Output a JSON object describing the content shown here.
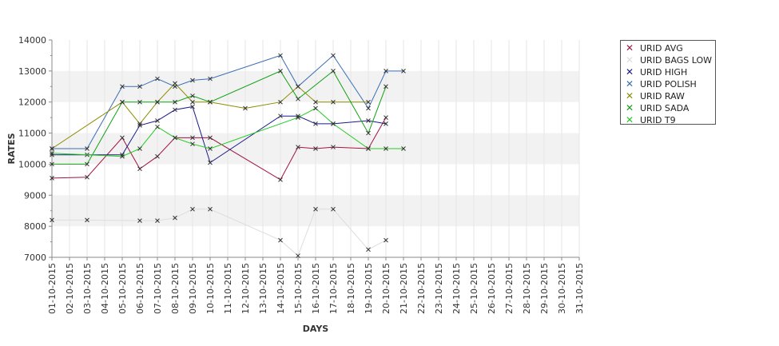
{
  "chart_data": {
    "type": "line",
    "xlabel": "DAYS",
    "ylabel": "RATES",
    "ylim": [
      7000,
      14000
    ],
    "yticks": [
      7000,
      8000,
      9000,
      10000,
      11000,
      12000,
      13000,
      14000
    ],
    "legend_position": "top-right",
    "bands": "alternating grey horizontal bands",
    "categories": [
      "01-10-2015",
      "02-10-2015",
      "03-10-2015",
      "04-10-2015",
      "05-10-2015",
      "06-10-2015",
      "07-10-2015",
      "08-10-2015",
      "09-10-2015",
      "10-10-2015",
      "11-10-2015",
      "12-10-2015",
      "13-10-2015",
      "14-10-2015",
      "15-10-2015",
      "16-10-2015",
      "17-10-2015",
      "18-10-2015",
      "19-10-2015",
      "20-10-2015",
      "21-10-2015",
      "22-10-2015",
      "23-10-2015",
      "24-10-2015",
      "25-10-2015",
      "26-10-2015",
      "27-10-2015",
      "28-10-2015",
      "29-10-2015",
      "30-10-2015",
      "31-10-2015"
    ],
    "series": [
      {
        "name": "URID AVG",
        "color": "#a0153e",
        "points": [
          [
            0,
            9550
          ],
          [
            2,
            9580
          ],
          [
            4,
            10850
          ],
          [
            5,
            9850
          ],
          [
            6,
            10250
          ],
          [
            7,
            10850
          ],
          [
            8,
            10850
          ],
          [
            9,
            10850
          ],
          [
            13,
            9500
          ],
          [
            14,
            10550
          ],
          [
            15,
            10500
          ],
          [
            16,
            10550
          ],
          [
            18,
            10500
          ],
          [
            19,
            11500
          ]
        ]
      },
      {
        "name": "URID BAGS LOW",
        "color": "#dddddd",
        "points": [
          [
            0,
            8200
          ],
          [
            2,
            8200
          ],
          [
            5,
            8180
          ],
          [
            6,
            8180
          ],
          [
            7,
            8270
          ],
          [
            8,
            8550
          ],
          [
            9,
            8550
          ],
          [
            13,
            7550
          ],
          [
            14,
            7050
          ],
          [
            15,
            8550
          ],
          [
            16,
            8550
          ],
          [
            18,
            7250
          ],
          [
            19,
            7550
          ]
        ]
      },
      {
        "name": "URID HIGH",
        "color": "#1a1a8c",
        "points": [
          [
            0,
            10300
          ],
          [
            2,
            10300
          ],
          [
            4,
            10300
          ],
          [
            5,
            11250
          ],
          [
            6,
            11400
          ],
          [
            7,
            11750
          ],
          [
            8,
            11850
          ],
          [
            9,
            10050
          ],
          [
            13,
            11550
          ],
          [
            14,
            11550
          ],
          [
            15,
            11300
          ],
          [
            16,
            11300
          ],
          [
            18,
            11400
          ],
          [
            19,
            11300
          ]
        ]
      },
      {
        "name": "URID POLISH",
        "color": "#3a6fb5",
        "points": [
          [
            0,
            10500
          ],
          [
            2,
            10500
          ],
          [
            4,
            12500
          ],
          [
            5,
            12500
          ],
          [
            6,
            12750
          ],
          [
            7,
            12500
          ],
          [
            8,
            12700
          ],
          [
            9,
            12750
          ],
          [
            13,
            13500
          ],
          [
            14,
            12500
          ],
          [
            16,
            13500
          ],
          [
            18,
            11800
          ],
          [
            19,
            13000
          ],
          [
            20,
            13000
          ]
        ]
      },
      {
        "name": "URID RAW",
        "color": "#8c8c00",
        "points": [
          [
            0,
            10500
          ],
          [
            4,
            12000
          ],
          [
            5,
            11300
          ],
          [
            6,
            12000
          ],
          [
            7,
            12600
          ],
          [
            8,
            12000
          ],
          [
            9,
            12000
          ],
          [
            11,
            11800
          ],
          [
            13,
            12000
          ],
          [
            14,
            12500
          ],
          [
            15,
            12000
          ],
          [
            16,
            12000
          ],
          [
            18,
            12000
          ]
        ]
      },
      {
        "name": "URID SADA",
        "color": "#11a011",
        "points": [
          [
            0,
            10000
          ],
          [
            2,
            10000
          ],
          [
            4,
            12000
          ],
          [
            5,
            12000
          ],
          [
            6,
            12000
          ],
          [
            7,
            12000
          ],
          [
            8,
            12200
          ],
          [
            9,
            12000
          ],
          [
            13,
            13000
          ],
          [
            14,
            12100
          ],
          [
            16,
            13000
          ],
          [
            18,
            11000
          ],
          [
            19,
            12500
          ]
        ]
      },
      {
        "name": "URID T9",
        "color": "#22cc22",
        "points": [
          [
            0,
            10350
          ],
          [
            4,
            10250
          ],
          [
            5,
            10500
          ],
          [
            6,
            11200
          ],
          [
            7,
            10850
          ],
          [
            8,
            10650
          ],
          [
            9,
            10500
          ],
          [
            14,
            11500
          ],
          [
            15,
            11800
          ],
          [
            16,
            11300
          ],
          [
            18,
            10500
          ],
          [
            19,
            10500
          ],
          [
            20,
            10500
          ]
        ]
      }
    ]
  }
}
